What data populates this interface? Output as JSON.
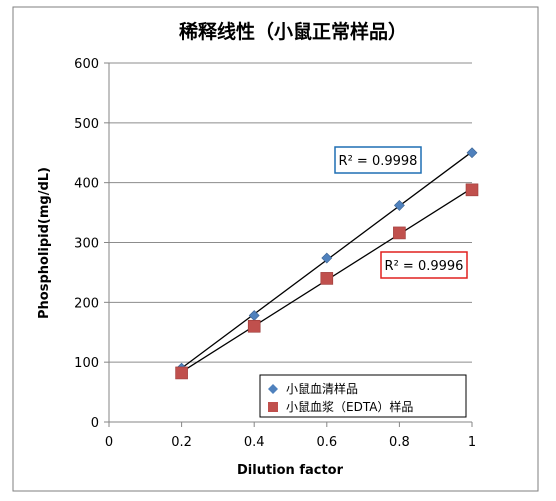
{
  "chart_data": {
    "type": "scatter",
    "title": "稀释线性（小鼠正常样品）",
    "xlabel": "Dilution factor",
    "ylabel": "Phospholipid(mg/dL)",
    "xlim": [
      0,
      1
    ],
    "ylim": [
      0,
      600
    ],
    "x_ticks": [
      "0",
      "0.2",
      "0.4",
      "0.6",
      "0.8",
      "1"
    ],
    "y_ticks": [
      "0",
      "100",
      "200",
      "300",
      "400",
      "500",
      "600"
    ],
    "grid": "horizontal",
    "legend_position": "bottom-right",
    "series": [
      {
        "name": "小鼠血清样品",
        "marker": "diamond",
        "color": "#4f81bd",
        "x": [
          0.2,
          0.4,
          0.6,
          0.8,
          1.0
        ],
        "y": [
          90,
          178,
          274,
          362,
          450
        ],
        "trendline": "linear",
        "r2_label": "R² = 0.9998",
        "r2_box_color": "#1f6fb4"
      },
      {
        "name": "小鼠血浆（EDTA）样品",
        "marker": "square",
        "color": "#c0504d",
        "x": [
          0.2,
          0.4,
          0.6,
          0.8,
          1.0
        ],
        "y": [
          82,
          160,
          240,
          316,
          388
        ],
        "trendline": "linear",
        "r2_label": "R² = 0.9996",
        "r2_box_color": "#e0201f"
      }
    ]
  }
}
